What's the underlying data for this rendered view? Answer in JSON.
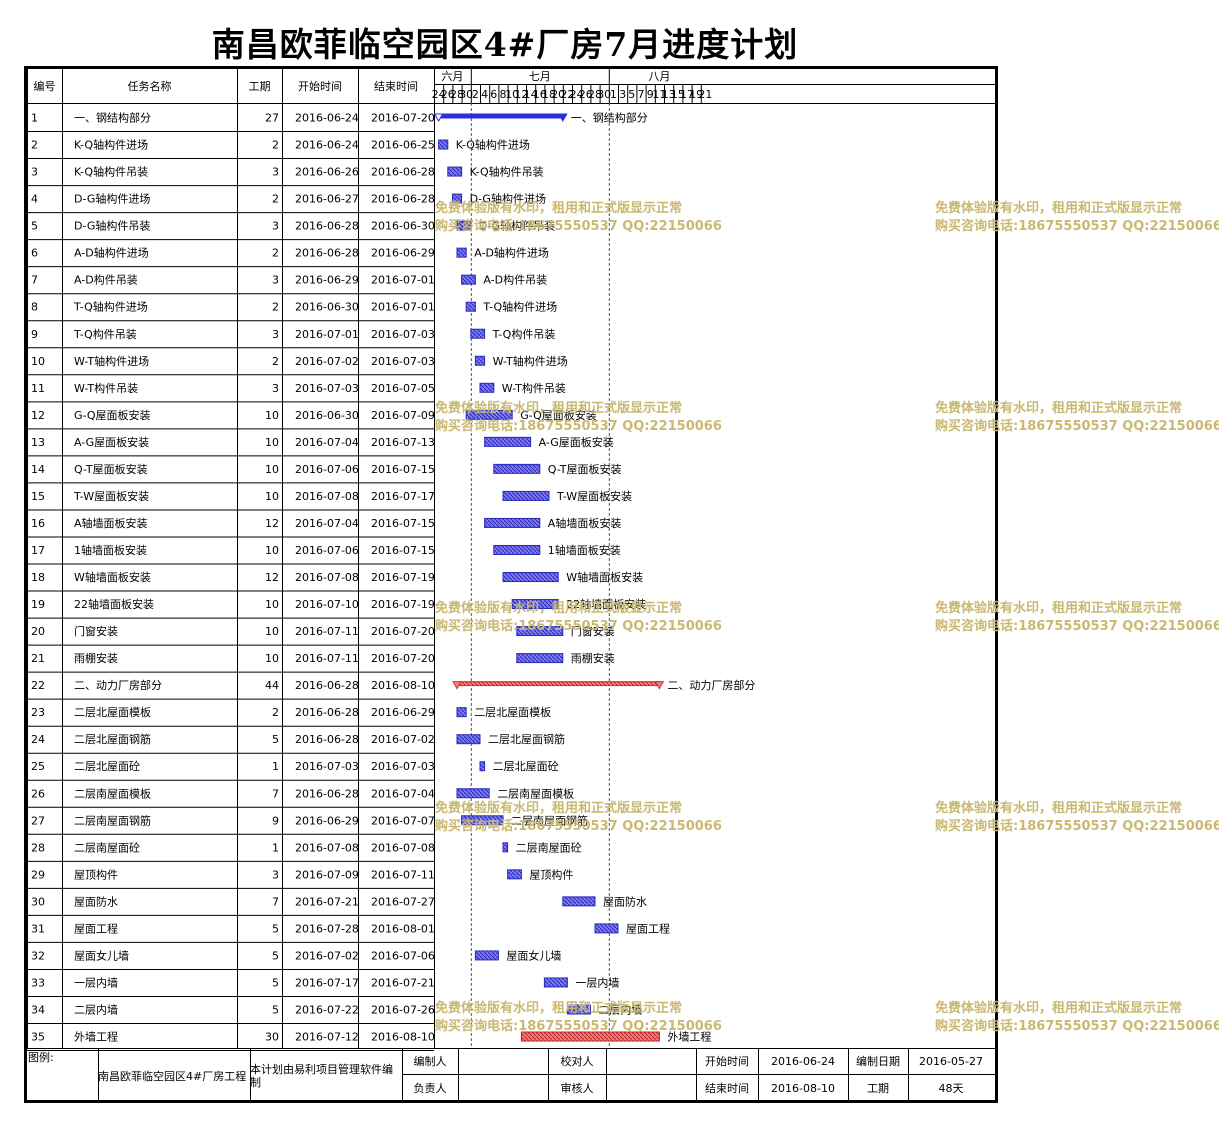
{
  "title": "南昌欧菲临空园区4#厂房7月进度计划",
  "headers": {
    "id": "编号",
    "name": "任务名称",
    "dur": "工期",
    "start": "开始时间",
    "end": "结束时间"
  },
  "months": [
    {
      "label": "六月",
      "from": 0,
      "to": 4
    },
    {
      "label": "七月",
      "from": 4,
      "to": 19
    },
    {
      "label": "八月",
      "from": 19,
      "to": 30
    }
  ],
  "days": [
    "24",
    "26",
    "28",
    "30",
    "2",
    "4",
    "6",
    "8",
    "10",
    "12",
    "14",
    "16",
    "18",
    "20",
    "22",
    "24",
    "26",
    "28",
    "30",
    "1",
    "3",
    "5",
    "7",
    "9",
    "11",
    "13",
    "15",
    "17",
    "19",
    "21"
  ],
  "chart_data": {
    "type": "gantt",
    "title": "南昌欧菲临空园区4#厂房7月进度计划",
    "axis_start": "2016-06-23",
    "tasks": [
      {
        "id": "1",
        "name": "一、钢结构部分",
        "dur": "27",
        "start": "2016-06-24",
        "end": "2016-07-20",
        "summary": true,
        "color": "#2d2de0"
      },
      {
        "id": "2",
        "name": "K-Q轴构件进场",
        "dur": "2",
        "start": "2016-06-24",
        "end": "2016-06-25"
      },
      {
        "id": "3",
        "name": "K-Q轴构件吊装",
        "dur": "3",
        "start": "2016-06-26",
        "end": "2016-06-28"
      },
      {
        "id": "4",
        "name": "D-G轴构件进场",
        "dur": "2",
        "start": "2016-06-27",
        "end": "2016-06-28"
      },
      {
        "id": "5",
        "name": "D-G轴构件吊装",
        "dur": "3",
        "start": "2016-06-28",
        "end": "2016-06-30"
      },
      {
        "id": "6",
        "name": "A-D轴构件进场",
        "dur": "2",
        "start": "2016-06-28",
        "end": "2016-06-29"
      },
      {
        "id": "7",
        "name": "A-D构件吊装",
        "dur": "3",
        "start": "2016-06-29",
        "end": "2016-07-01"
      },
      {
        "id": "8",
        "name": "T-Q轴构件进场",
        "dur": "2",
        "start": "2016-06-30",
        "end": "2016-07-01"
      },
      {
        "id": "9",
        "name": "T-Q构件吊装",
        "dur": "3",
        "start": "2016-07-01",
        "end": "2016-07-03"
      },
      {
        "id": "10",
        "name": "W-T轴构件进场",
        "dur": "2",
        "start": "2016-07-02",
        "end": "2016-07-03"
      },
      {
        "id": "11",
        "name": "W-T构件吊装",
        "dur": "3",
        "start": "2016-07-03",
        "end": "2016-07-05"
      },
      {
        "id": "12",
        "name": "G-Q屋面板安装",
        "dur": "10",
        "start": "2016-06-30",
        "end": "2016-07-09"
      },
      {
        "id": "13",
        "name": "A-G屋面板安装",
        "dur": "10",
        "start": "2016-07-04",
        "end": "2016-07-13"
      },
      {
        "id": "14",
        "name": "Q-T屋面板安装",
        "dur": "10",
        "start": "2016-07-06",
        "end": "2016-07-15"
      },
      {
        "id": "15",
        "name": "T-W屋面板安装",
        "dur": "10",
        "start": "2016-07-08",
        "end": "2016-07-17"
      },
      {
        "id": "16",
        "name": "A轴墙面板安装",
        "dur": "12",
        "start": "2016-07-04",
        "end": "2016-07-15"
      },
      {
        "id": "17",
        "name": "1轴墙面板安装",
        "dur": "10",
        "start": "2016-07-06",
        "end": "2016-07-15"
      },
      {
        "id": "18",
        "name": "W轴墙面板安装",
        "dur": "12",
        "start": "2016-07-08",
        "end": "2016-07-19"
      },
      {
        "id": "19",
        "name": "22轴墙面板安装",
        "dur": "10",
        "start": "2016-07-10",
        "end": "2016-07-19"
      },
      {
        "id": "20",
        "name": "门窗安装",
        "dur": "10",
        "start": "2016-07-11",
        "end": "2016-07-20"
      },
      {
        "id": "21",
        "name": "雨棚安装",
        "dur": "10",
        "start": "2016-07-11",
        "end": "2016-07-20"
      },
      {
        "id": "22",
        "name": "二、动力厂房部分",
        "dur": "44",
        "start": "2016-06-28",
        "end": "2016-08-10",
        "summary": true,
        "color": "#d93030"
      },
      {
        "id": "23",
        "name": "二层北屋面模板",
        "dur": "2",
        "start": "2016-06-28",
        "end": "2016-06-29"
      },
      {
        "id": "24",
        "name": "二层北屋面钢筋",
        "dur": "5",
        "start": "2016-06-28",
        "end": "2016-07-02"
      },
      {
        "id": "25",
        "name": "二层北屋面砼",
        "dur": "1",
        "start": "2016-07-03",
        "end": "2016-07-03"
      },
      {
        "id": "26",
        "name": "二层南屋面模板",
        "dur": "7",
        "start": "2016-06-28",
        "end": "2016-07-04"
      },
      {
        "id": "27",
        "name": "二层南屋面钢筋",
        "dur": "9",
        "start": "2016-06-29",
        "end": "2016-07-07"
      },
      {
        "id": "28",
        "name": "二层南屋面砼",
        "dur": "1",
        "start": "2016-07-08",
        "end": "2016-07-08"
      },
      {
        "id": "29",
        "name": "屋顶构件",
        "dur": "3",
        "start": "2016-07-09",
        "end": "2016-07-11"
      },
      {
        "id": "30",
        "name": "屋面防水",
        "dur": "7",
        "start": "2016-07-21",
        "end": "2016-07-27"
      },
      {
        "id": "31",
        "name": "屋面工程",
        "dur": "5",
        "start": "2016-07-28",
        "end": "2016-08-01"
      },
      {
        "id": "32",
        "name": "屋面女儿墙",
        "dur": "5",
        "start": "2016-07-02",
        "end": "2016-07-06"
      },
      {
        "id": "33",
        "name": "一层内墙",
        "dur": "5",
        "start": "2016-07-17",
        "end": "2016-07-21"
      },
      {
        "id": "34",
        "name": "二层内墙",
        "dur": "5",
        "start": "2016-07-22",
        "end": "2016-07-26"
      },
      {
        "id": "35",
        "name": "外墙工程",
        "dur": "30",
        "start": "2016-07-12",
        "end": "2016-08-10",
        "color": "#d93030"
      }
    ]
  },
  "footer": {
    "legend_label": "图例:",
    "project": "南昌欧菲临空园区4#厂房工程",
    "software": "本计划由易利项目管理软件编制",
    "compiler_label": "编制人",
    "checker_label": "校对人",
    "owner_label": "负责人",
    "reviewer_label": "审核人",
    "start_label": "开始时间",
    "start_value": "2016-06-24",
    "date_label": "编制日期",
    "date_value": "2016-05-27",
    "end_label": "结束时间",
    "end_value": "2016-08-10",
    "dur_label": "工期",
    "dur_value": "48天"
  },
  "watermark": {
    "line1": "免费体验版有水印，租用和正式版显示正常",
    "line2": "购买咨询电话:18675550537 QQ:22150066"
  },
  "colors": {
    "bar": "#3333cc",
    "bar_fill": "#6b6be6",
    "red": "#d93030",
    "watermark": "#c8b871"
  }
}
